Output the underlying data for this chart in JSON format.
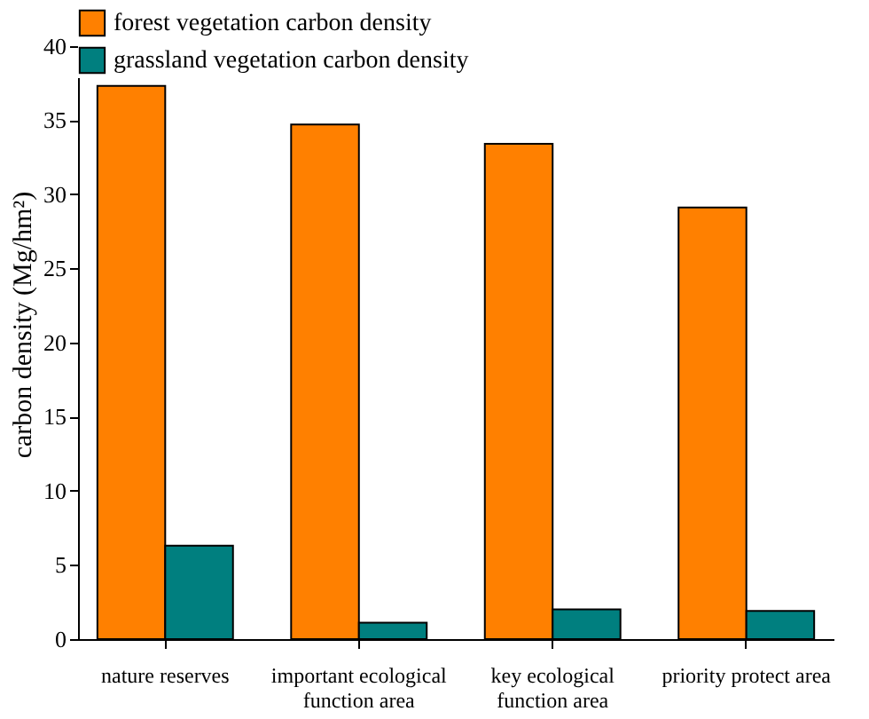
{
  "chart_data": {
    "type": "bar",
    "categories": [
      "nature reserves",
      "important ecological\nfunction area",
      "key ecological\nfunction area",
      "priority protect area"
    ],
    "series": [
      {
        "name": "forest vegetation carbon density",
        "color": "#ff8000",
        "values": [
          37.3,
          34.7,
          33.4,
          29.1
        ]
      },
      {
        "name": "grassland vegetation carbon density",
        "color": "#007f7f",
        "values": [
          6.3,
          1.1,
          2.0,
          1.9
        ]
      }
    ],
    "ylabel": "carbon density (Mg/hm²)",
    "ylim": [
      0,
      42.5
    ],
    "yticks": [
      0,
      5,
      10,
      15,
      20,
      25,
      30,
      35,
      40
    ],
    "grid": false,
    "legend": "top left"
  }
}
